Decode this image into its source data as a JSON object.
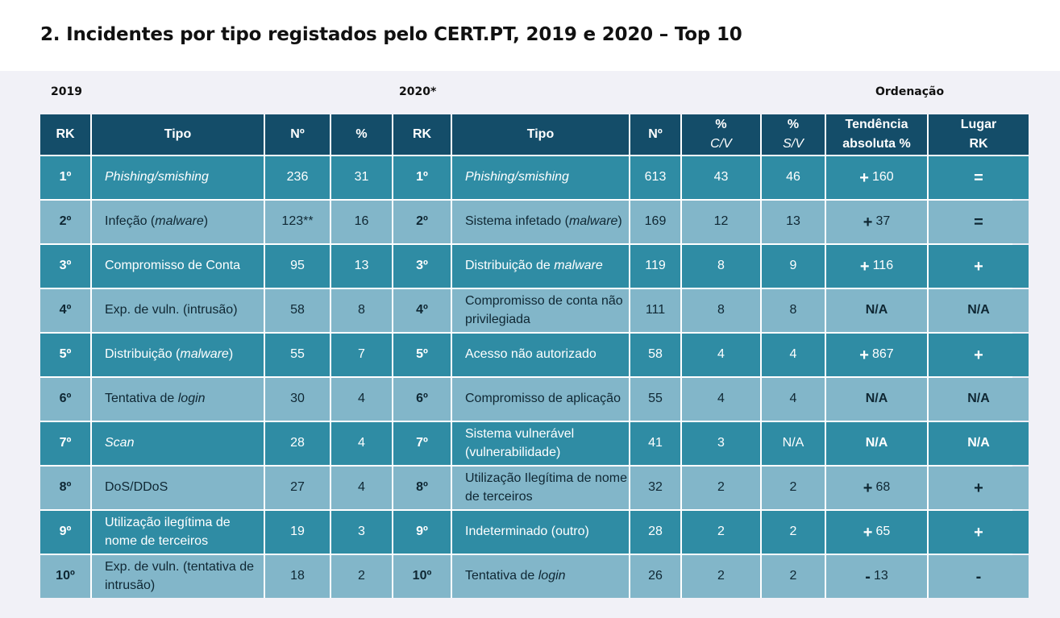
{
  "title": "2. Incidentes por tipo registados pelo CERT.PT, 2019 e 2020 – Top 10",
  "section_labels": {
    "y2019": "2019",
    "y2020": "2020*",
    "ordenacao": "Ordenação"
  },
  "headers": {
    "rk": "RK",
    "tipo": "Tipo",
    "n": "Nº",
    "pct": "%",
    "pct_cv_top": "%",
    "pct_cv_bottom": "C/V",
    "pct_sv_top": "%",
    "pct_sv_bottom": "S/V",
    "tendencia_line1": "Tendência",
    "tendencia_line2": "absoluta %",
    "lugar_line1": "Lugar",
    "lugar_line2": "RK"
  },
  "rows": [
    {
      "rk2019": "1º",
      "tipo2019": [
        {
          "t": "Phishing/smishing",
          "i": true
        }
      ],
      "n2019": "236",
      "pct2019": "31",
      "rk2020": "1º",
      "tipo2020": [
        {
          "t": "Phishing/smishing",
          "i": true
        }
      ],
      "n2020": "613",
      "cv": "43",
      "sv": "46",
      "trend_sign": "+",
      "trend_value": "160",
      "lugar": "="
    },
    {
      "rk2019": "2º",
      "tipo2019": [
        {
          "t": "Infeção ("
        },
        {
          "t": "malware",
          "i": true
        },
        {
          "t": ")"
        }
      ],
      "n2019": "123**",
      "pct2019": "16",
      "rk2020": "2º",
      "tipo2020": [
        {
          "t": "Sistema infetado ("
        },
        {
          "t": "malware",
          "i": true
        },
        {
          "t": ")"
        }
      ],
      "n2020": "169",
      "cv": "12",
      "sv": "13",
      "trend_sign": "+",
      "trend_value": "37",
      "lugar": "="
    },
    {
      "rk2019": "3º",
      "tipo2019": [
        {
          "t": "Compromisso de Conta"
        }
      ],
      "n2019": "95",
      "pct2019": "13",
      "rk2020": "3º",
      "tipo2020": [
        {
          "t": "Distribuição de "
        },
        {
          "t": "malware",
          "i": true
        }
      ],
      "n2020": "119",
      "cv": "8",
      "sv": "9",
      "trend_sign": "+",
      "trend_value": "116",
      "lugar": "+"
    },
    {
      "rk2019": "4º",
      "tipo2019": [
        {
          "t": "Exp. de vuln. (intrusão)"
        }
      ],
      "n2019": "58",
      "pct2019": "8",
      "rk2020": "4º",
      "tipo2020": [
        {
          "t": "Compromisso de conta não privilegiada"
        }
      ],
      "n2020": "111",
      "cv": "8",
      "sv": "8",
      "trend_sign": "",
      "trend_value": "N/A",
      "lugar": "N/A"
    },
    {
      "rk2019": "5º",
      "tipo2019": [
        {
          "t": "Distribuição ("
        },
        {
          "t": "malware",
          "i": true
        },
        {
          "t": ")"
        }
      ],
      "n2019": "55",
      "pct2019": "7",
      "rk2020": "5º",
      "tipo2020": [
        {
          "t": "Acesso não autorizado"
        }
      ],
      "n2020": "58",
      "cv": "4",
      "sv": "4",
      "trend_sign": "+",
      "trend_value": "867",
      "lugar": "+"
    },
    {
      "rk2019": "6º",
      "tipo2019": [
        {
          "t": "Tentativa de "
        },
        {
          "t": "login",
          "i": true
        }
      ],
      "n2019": "30",
      "pct2019": "4",
      "rk2020": "6º",
      "tipo2020": [
        {
          "t": "Compromisso de aplicação"
        }
      ],
      "n2020": "55",
      "cv": "4",
      "sv": "4",
      "trend_sign": "",
      "trend_value": "N/A",
      "lugar": "N/A"
    },
    {
      "rk2019": "7º",
      "tipo2019": [
        {
          "t": "Scan",
          "i": true
        }
      ],
      "n2019": "28",
      "pct2019": "4",
      "rk2020": "7º",
      "tipo2020": [
        {
          "t": "Sistema vulnerável (vulnerabilidade)"
        }
      ],
      "n2020": "41",
      "cv": "3",
      "sv": "N/A",
      "trend_sign": "",
      "trend_value": "N/A",
      "lugar": "N/A"
    },
    {
      "rk2019": "8º",
      "tipo2019": [
        {
          "t": "DoS/DDoS"
        }
      ],
      "n2019": "27",
      "pct2019": "4",
      "rk2020": "8º",
      "tipo2020": [
        {
          "t": "Utilização Ilegítima de nome de terceiros"
        }
      ],
      "n2020": "32",
      "cv": "2",
      "sv": "2",
      "trend_sign": "+",
      "trend_value": "68",
      "lugar": "+"
    },
    {
      "rk2019": "9º",
      "tipo2019": [
        {
          "t": "Utilização ilegítima de nome de terceiros"
        }
      ],
      "n2019": "19",
      "pct2019": "3",
      "rk2020": "9º",
      "tipo2020": [
        {
          "t": "Indeterminado (outro)"
        }
      ],
      "n2020": "28",
      "cv": "2",
      "sv": "2",
      "trend_sign": "+",
      "trend_value": "65",
      "lugar": "+"
    },
    {
      "rk2019": "10º",
      "tipo2019": [
        {
          "t": "Exp. de vuln. (tentativa de intrusão)"
        }
      ],
      "n2019": "18",
      "pct2019": "2",
      "rk2020": "10º",
      "tipo2020": [
        {
          "t": "Tentativa de "
        },
        {
          "t": "login",
          "i": true
        }
      ],
      "n2020": "26",
      "cv": "2",
      "sv": "2",
      "trend_sign": "-",
      "trend_value": "13",
      "lugar": "-"
    }
  ]
}
